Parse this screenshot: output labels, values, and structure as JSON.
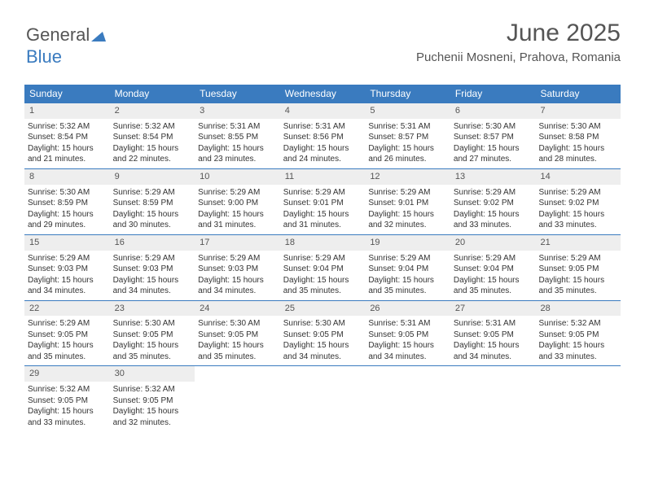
{
  "logo": {
    "text1": "General",
    "text2": "Blue"
  },
  "title": "June 2025",
  "location": "Puchenii Mosneni, Prahova, Romania",
  "colors": {
    "header_bg": "#3a7bbf",
    "header_text": "#ffffff",
    "daynum_bg": "#eeeeee",
    "border": "#3a7bbf",
    "body_text": "#333333",
    "title_text": "#555555"
  },
  "day_headers": [
    "Sunday",
    "Monday",
    "Tuesday",
    "Wednesday",
    "Thursday",
    "Friday",
    "Saturday"
  ],
  "weeks": [
    [
      {
        "n": "1",
        "sr": "Sunrise: 5:32 AM",
        "ss": "Sunset: 8:54 PM",
        "d1": "Daylight: 15 hours",
        "d2": "and 21 minutes."
      },
      {
        "n": "2",
        "sr": "Sunrise: 5:32 AM",
        "ss": "Sunset: 8:54 PM",
        "d1": "Daylight: 15 hours",
        "d2": "and 22 minutes."
      },
      {
        "n": "3",
        "sr": "Sunrise: 5:31 AM",
        "ss": "Sunset: 8:55 PM",
        "d1": "Daylight: 15 hours",
        "d2": "and 23 minutes."
      },
      {
        "n": "4",
        "sr": "Sunrise: 5:31 AM",
        "ss": "Sunset: 8:56 PM",
        "d1": "Daylight: 15 hours",
        "d2": "and 24 minutes."
      },
      {
        "n": "5",
        "sr": "Sunrise: 5:31 AM",
        "ss": "Sunset: 8:57 PM",
        "d1": "Daylight: 15 hours",
        "d2": "and 26 minutes."
      },
      {
        "n": "6",
        "sr": "Sunrise: 5:30 AM",
        "ss": "Sunset: 8:57 PM",
        "d1": "Daylight: 15 hours",
        "d2": "and 27 minutes."
      },
      {
        "n": "7",
        "sr": "Sunrise: 5:30 AM",
        "ss": "Sunset: 8:58 PM",
        "d1": "Daylight: 15 hours",
        "d2": "and 28 minutes."
      }
    ],
    [
      {
        "n": "8",
        "sr": "Sunrise: 5:30 AM",
        "ss": "Sunset: 8:59 PM",
        "d1": "Daylight: 15 hours",
        "d2": "and 29 minutes."
      },
      {
        "n": "9",
        "sr": "Sunrise: 5:29 AM",
        "ss": "Sunset: 8:59 PM",
        "d1": "Daylight: 15 hours",
        "d2": "and 30 minutes."
      },
      {
        "n": "10",
        "sr": "Sunrise: 5:29 AM",
        "ss": "Sunset: 9:00 PM",
        "d1": "Daylight: 15 hours",
        "d2": "and 31 minutes."
      },
      {
        "n": "11",
        "sr": "Sunrise: 5:29 AM",
        "ss": "Sunset: 9:01 PM",
        "d1": "Daylight: 15 hours",
        "d2": "and 31 minutes."
      },
      {
        "n": "12",
        "sr": "Sunrise: 5:29 AM",
        "ss": "Sunset: 9:01 PM",
        "d1": "Daylight: 15 hours",
        "d2": "and 32 minutes."
      },
      {
        "n": "13",
        "sr": "Sunrise: 5:29 AM",
        "ss": "Sunset: 9:02 PM",
        "d1": "Daylight: 15 hours",
        "d2": "and 33 minutes."
      },
      {
        "n": "14",
        "sr": "Sunrise: 5:29 AM",
        "ss": "Sunset: 9:02 PM",
        "d1": "Daylight: 15 hours",
        "d2": "and 33 minutes."
      }
    ],
    [
      {
        "n": "15",
        "sr": "Sunrise: 5:29 AM",
        "ss": "Sunset: 9:03 PM",
        "d1": "Daylight: 15 hours",
        "d2": "and 34 minutes."
      },
      {
        "n": "16",
        "sr": "Sunrise: 5:29 AM",
        "ss": "Sunset: 9:03 PM",
        "d1": "Daylight: 15 hours",
        "d2": "and 34 minutes."
      },
      {
        "n": "17",
        "sr": "Sunrise: 5:29 AM",
        "ss": "Sunset: 9:03 PM",
        "d1": "Daylight: 15 hours",
        "d2": "and 34 minutes."
      },
      {
        "n": "18",
        "sr": "Sunrise: 5:29 AM",
        "ss": "Sunset: 9:04 PM",
        "d1": "Daylight: 15 hours",
        "d2": "and 35 minutes."
      },
      {
        "n": "19",
        "sr": "Sunrise: 5:29 AM",
        "ss": "Sunset: 9:04 PM",
        "d1": "Daylight: 15 hours",
        "d2": "and 35 minutes."
      },
      {
        "n": "20",
        "sr": "Sunrise: 5:29 AM",
        "ss": "Sunset: 9:04 PM",
        "d1": "Daylight: 15 hours",
        "d2": "and 35 minutes."
      },
      {
        "n": "21",
        "sr": "Sunrise: 5:29 AM",
        "ss": "Sunset: 9:05 PM",
        "d1": "Daylight: 15 hours",
        "d2": "and 35 minutes."
      }
    ],
    [
      {
        "n": "22",
        "sr": "Sunrise: 5:29 AM",
        "ss": "Sunset: 9:05 PM",
        "d1": "Daylight: 15 hours",
        "d2": "and 35 minutes."
      },
      {
        "n": "23",
        "sr": "Sunrise: 5:30 AM",
        "ss": "Sunset: 9:05 PM",
        "d1": "Daylight: 15 hours",
        "d2": "and 35 minutes."
      },
      {
        "n": "24",
        "sr": "Sunrise: 5:30 AM",
        "ss": "Sunset: 9:05 PM",
        "d1": "Daylight: 15 hours",
        "d2": "and 35 minutes."
      },
      {
        "n": "25",
        "sr": "Sunrise: 5:30 AM",
        "ss": "Sunset: 9:05 PM",
        "d1": "Daylight: 15 hours",
        "d2": "and 34 minutes."
      },
      {
        "n": "26",
        "sr": "Sunrise: 5:31 AM",
        "ss": "Sunset: 9:05 PM",
        "d1": "Daylight: 15 hours",
        "d2": "and 34 minutes."
      },
      {
        "n": "27",
        "sr": "Sunrise: 5:31 AM",
        "ss": "Sunset: 9:05 PM",
        "d1": "Daylight: 15 hours",
        "d2": "and 34 minutes."
      },
      {
        "n": "28",
        "sr": "Sunrise: 5:32 AM",
        "ss": "Sunset: 9:05 PM",
        "d1": "Daylight: 15 hours",
        "d2": "and 33 minutes."
      }
    ],
    [
      {
        "n": "29",
        "sr": "Sunrise: 5:32 AM",
        "ss": "Sunset: 9:05 PM",
        "d1": "Daylight: 15 hours",
        "d2": "and 33 minutes."
      },
      {
        "n": "30",
        "sr": "Sunrise: 5:32 AM",
        "ss": "Sunset: 9:05 PM",
        "d1": "Daylight: 15 hours",
        "d2": "and 32 minutes."
      },
      null,
      null,
      null,
      null,
      null
    ]
  ]
}
